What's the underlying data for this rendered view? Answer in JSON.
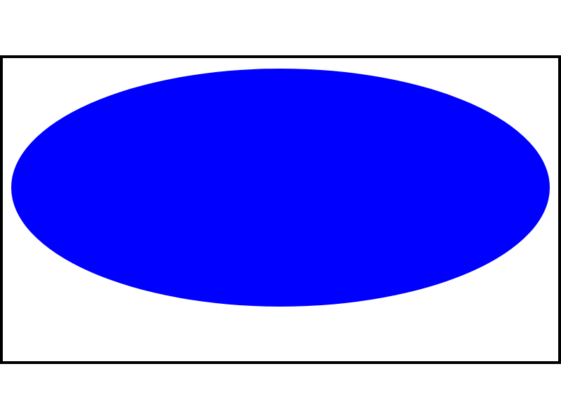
{
  "colors": {
    "background": "#ffffff",
    "frame_stroke": "#000000",
    "frame_fill": "#ffffff",
    "ellipse_fill": "#0000ff"
  }
}
